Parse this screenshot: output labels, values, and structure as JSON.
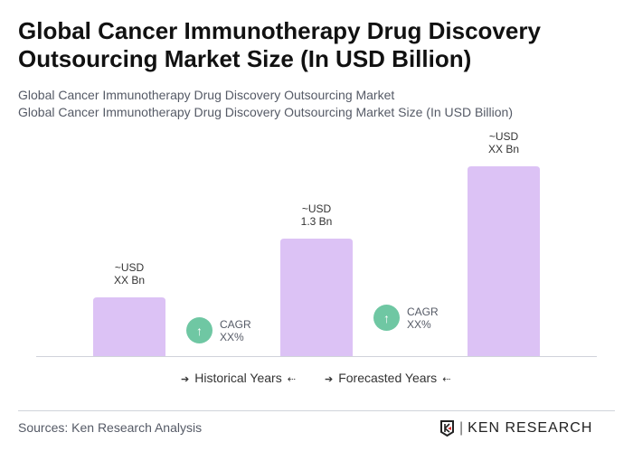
{
  "title": "Global Cancer Immunotherapy Drug Discovery Outsourcing Market Size (In USD Billion)",
  "subtitle1": "Global Cancer Immunotherapy Drug Discovery Outsourcing Market",
  "subtitle2": "Global Cancer Immunotherapy Drug Discovery Outsourcing Market Size (In USD Billion)",
  "chart_data": {
    "type": "bar",
    "values": [
      0.65,
      1.3,
      2.1
    ],
    "data_labels": [
      [
        "~USD",
        "XX Bn"
      ],
      [
        "~USD",
        "1.3 Bn"
      ],
      [
        "~USD",
        "XX Bn"
      ]
    ],
    "bar_color": "#dcc2f5",
    "cagr": [
      {
        "label": "CAGR",
        "value": "XX%"
      },
      {
        "label": "CAGR",
        "value": "XX%"
      }
    ],
    "cagr_color": "#6fc7a3",
    "legend": [
      "Historical Years",
      "Forecasted Years"
    ],
    "ylim": [
      0,
      2.3
    ],
    "grid": false
  },
  "footer": {
    "source": "Sources: Ken Research Analysis",
    "logo_text": "KEN RESEARCH"
  }
}
